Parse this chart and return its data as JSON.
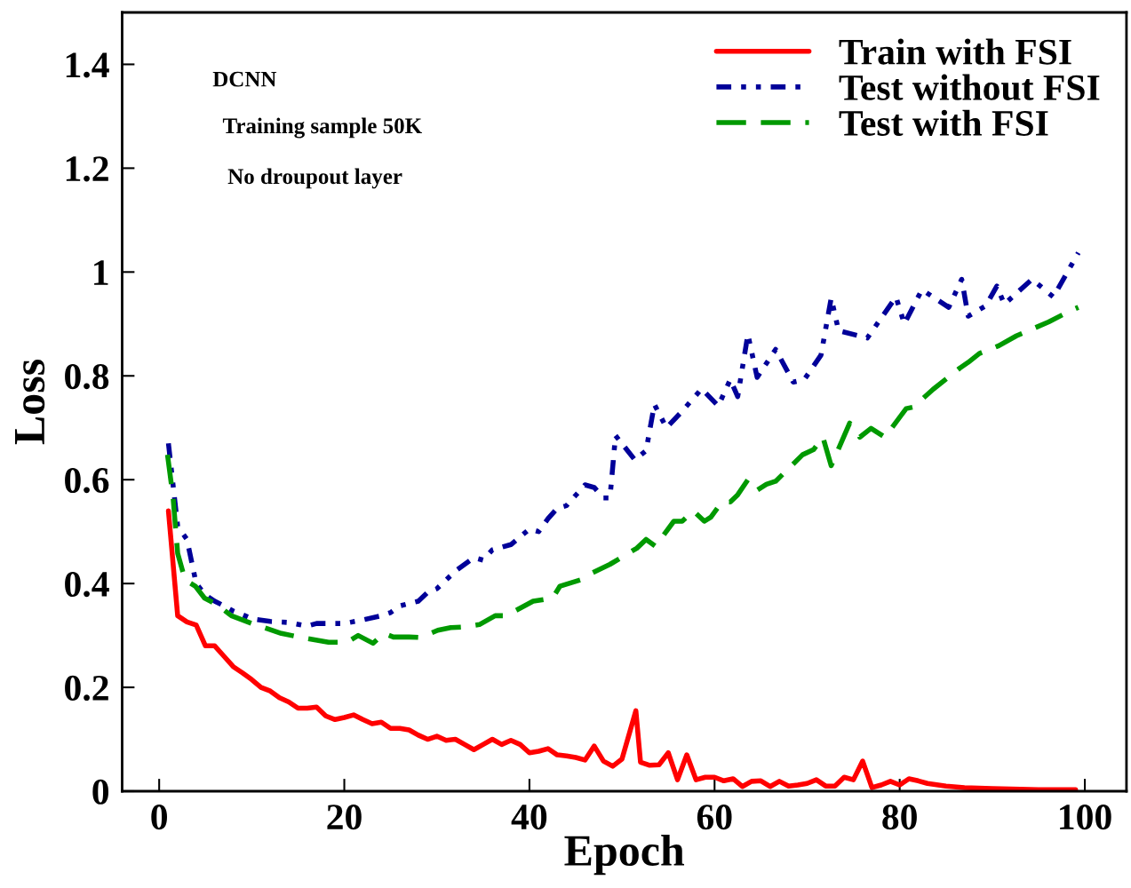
{
  "chart_data": {
    "type": "line",
    "xlabel": "Epoch",
    "ylabel": "Loss",
    "xlim": [
      -4,
      104.5
    ],
    "ylim": [
      0,
      1.5
    ],
    "xticks": [
      0,
      20,
      40,
      60,
      80,
      100
    ],
    "yticks": [
      0,
      0.2,
      0.4,
      0.6,
      0.8,
      {
        "value": 1.0,
        "label": "1"
      },
      1.2,
      1.4
    ],
    "grid": false,
    "legend": "top right",
    "annotations": [
      "DCNN",
      "Training sample 50K",
      "No droupout layer"
    ],
    "series": [
      {
        "name": "Train with FSI",
        "color": "#ff0000",
        "line_style": "solid",
        "x": [
          1,
          2,
          3,
          4,
          5,
          6,
          7,
          8,
          9,
          10,
          11,
          12,
          13,
          14,
          15,
          16,
          17,
          18,
          19,
          20,
          21,
          22,
          23,
          24,
          25,
          26,
          27,
          28,
          29,
          30,
          31,
          32,
          33,
          34,
          35,
          36,
          37,
          38,
          39,
          40,
          41,
          42,
          43,
          44,
          45,
          46,
          47,
          48,
          49,
          50,
          51.5,
          52,
          53,
          54,
          55,
          56,
          57,
          58,
          59,
          60,
          61,
          62,
          63,
          64,
          65,
          66,
          67,
          68,
          69,
          70,
          71,
          72,
          73,
          74,
          75,
          76,
          77,
          78,
          79,
          80,
          81,
          82,
          83,
          85,
          87,
          90,
          95,
          99
        ],
        "values": [
          0.54,
          0.338,
          0.326,
          0.32,
          0.28,
          0.28,
          0.26,
          0.24,
          0.228,
          0.215,
          0.2,
          0.193,
          0.18,
          0.172,
          0.16,
          0.16,
          0.162,
          0.145,
          0.138,
          0.142,
          0.147,
          0.138,
          0.13,
          0.133,
          0.121,
          0.121,
          0.118,
          0.108,
          0.1,
          0.106,
          0.098,
          0.1,
          0.09,
          0.08,
          0.09,
          0.1,
          0.09,
          0.098,
          0.09,
          0.074,
          0.077,
          0.082,
          0.07,
          0.068,
          0.065,
          0.06,
          0.087,
          0.058,
          0.048,
          0.062,
          0.155,
          0.056,
          0.05,
          0.051,
          0.074,
          0.022,
          0.07,
          0.022,
          0.027,
          0.027,
          0.02,
          0.024,
          0.009,
          0.019,
          0.02,
          0.009,
          0.019,
          0.01,
          0.012,
          0.015,
          0.022,
          0.01,
          0.01,
          0.027,
          0.022,
          0.058,
          0.007,
          0.012,
          0.019,
          0.012,
          0.024,
          0.02,
          0.015,
          0.01,
          0.007,
          0.005,
          0.003,
          0.003
        ]
      },
      {
        "name": "Test without FSI",
        "color": "#000099",
        "line_style": "dotted",
        "x": [
          1,
          2,
          3,
          4,
          5,
          6,
          7,
          8,
          9,
          10,
          12,
          14,
          16,
          17,
          20,
          22,
          24,
          25,
          26,
          28,
          29,
          30,
          32,
          34,
          35,
          36,
          37,
          38,
          39,
          40,
          41,
          42,
          43,
          44,
          45,
          46,
          47,
          48,
          48.7,
          49.3,
          51.4,
          52.6,
          53.5,
          54.8,
          56.4,
          58.6,
          60.4,
          61.7,
          62.5,
          63.6,
          64.6,
          66.6,
          68.5,
          69.7,
          71.5,
          72.6,
          73.4,
          76.5,
          79.6,
          80.5,
          82.4,
          85.3,
          86.7,
          87.4,
          89.3,
          90.5,
          91.3,
          94.3,
          96.6,
          99.3
        ],
        "values": [
          0.67,
          0.51,
          0.485,
          0.4,
          0.378,
          0.366,
          0.357,
          0.347,
          0.34,
          0.332,
          0.327,
          0.325,
          0.318,
          0.323,
          0.323,
          0.33,
          0.338,
          0.344,
          0.357,
          0.366,
          0.383,
          0.39,
          0.424,
          0.45,
          0.445,
          0.465,
          0.47,
          0.475,
          0.49,
          0.505,
          0.5,
          0.525,
          0.545,
          0.55,
          0.57,
          0.59,
          0.585,
          0.565,
          0.565,
          0.685,
          0.638,
          0.656,
          0.745,
          0.7,
          0.73,
          0.775,
          0.742,
          0.793,
          0.76,
          0.88,
          0.797,
          0.851,
          0.788,
          0.793,
          0.84,
          0.95,
          0.887,
          0.873,
          0.952,
          0.9,
          0.966,
          0.932,
          0.986,
          0.915,
          0.935,
          0.973,
          0.938,
          0.986,
          0.952,
          1.037
        ]
      },
      {
        "name": "Test with FSI",
        "color": "#009900",
        "line_style": "dashed",
        "x": [
          0.9,
          1.5,
          2,
          2.8,
          3.9,
          4.9,
          6.2,
          7.8,
          10,
          13.2,
          15.4,
          18.3,
          20.3,
          21.5,
          23.1,
          24.3,
          25.3,
          27,
          28.2,
          30.1,
          31.5,
          32.7,
          34.6,
          36.3,
          37.5,
          40.4,
          42.5,
          43.3,
          45.5,
          46.4,
          48.7,
          51.6,
          52.6,
          53.6,
          55.6,
          56.5,
          57.7,
          58.9,
          59.6,
          60.8,
          61.7,
          62.5,
          63.6,
          64.6,
          65.6,
          66.6,
          69.5,
          70.7,
          71.7,
          72.6,
          74.6,
          75.7,
          76.9,
          78.4,
          80.7,
          81.5,
          83.6,
          86.5,
          87.4,
          88.6,
          90.7,
          92.6,
          96.1,
          98.4,
          99.3
        ],
        "values": [
          0.648,
          0.566,
          0.458,
          0.407,
          0.395,
          0.372,
          0.36,
          0.338,
          0.323,
          0.304,
          0.296,
          0.287,
          0.287,
          0.3,
          0.285,
          0.304,
          0.297,
          0.297,
          0.296,
          0.31,
          0.315,
          0.316,
          0.321,
          0.338,
          0.338,
          0.366,
          0.372,
          0.395,
          0.407,
          0.417,
          0.437,
          0.468,
          0.485,
          0.472,
          0.52,
          0.52,
          0.54,
          0.52,
          0.528,
          0.557,
          0.557,
          0.571,
          0.6,
          0.58,
          0.591,
          0.597,
          0.648,
          0.658,
          0.682,
          0.627,
          0.709,
          0.682,
          0.699,
          0.682,
          0.737,
          0.74,
          0.774,
          0.815,
          0.826,
          0.843,
          0.858,
          0.877,
          0.904,
          0.925,
          0.932
        ]
      }
    ]
  }
}
